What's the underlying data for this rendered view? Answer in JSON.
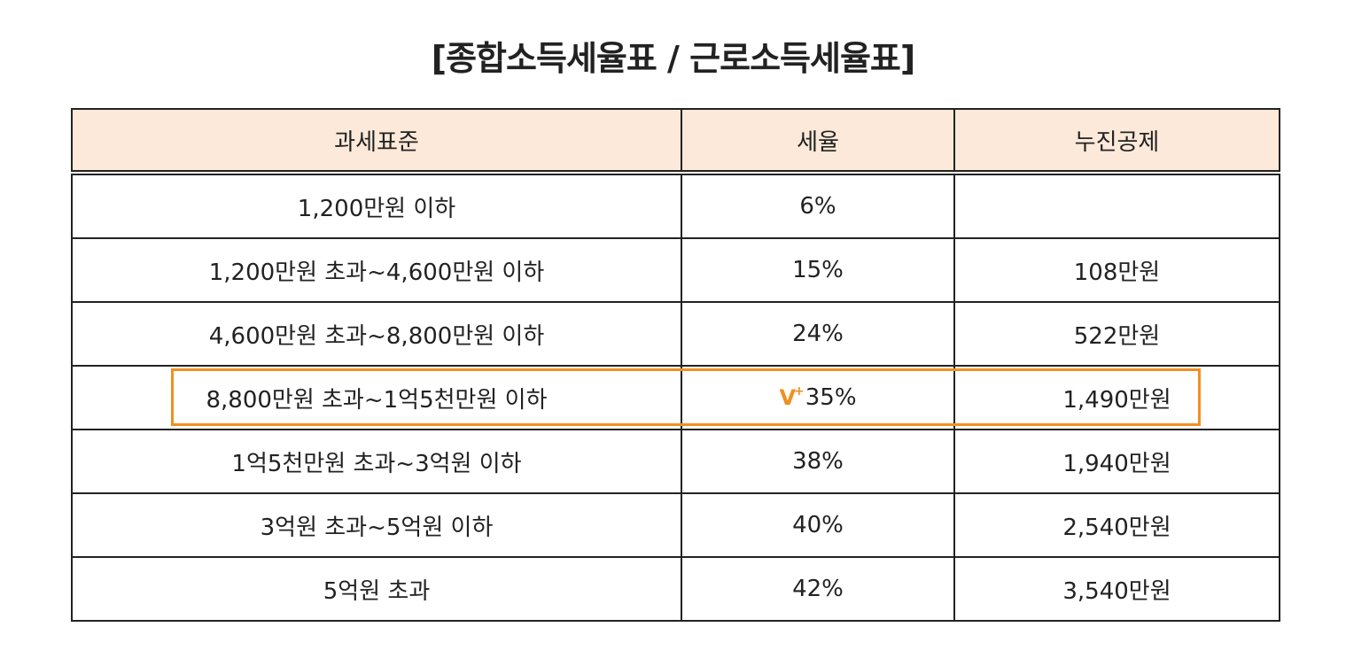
{
  "title": "[종합소득세율표 / 근로소득세율표]",
  "colors": {
    "header_bg": "#fde9d9",
    "border": "#222222",
    "highlight": "#f0901f"
  },
  "table": {
    "headers": [
      "과세표준",
      "세율",
      "누진공제"
    ],
    "rows": [
      {
        "bracket": "1,200만원 이하",
        "rate": "6%",
        "deduction": ""
      },
      {
        "bracket": "1,200만원 초과~4,600만원 이하",
        "rate": "15%",
        "deduction": "108만원"
      },
      {
        "bracket": "4,600만원 초과~8,800만원 이하",
        "rate": "24%",
        "deduction": "522만원"
      },
      {
        "bracket": "8,800만원 초과~1억5천만원 이하",
        "rate": "35%",
        "deduction": "1,490만원"
      },
      {
        "bracket": "1억5천만원 초과~3억원 이하",
        "rate": "38%",
        "deduction": "1,940만원"
      },
      {
        "bracket": "3억원 초과~5억원 이하",
        "rate": "40%",
        "deduction": "2,540만원"
      },
      {
        "bracket": "5억원 초과",
        "rate": "42%",
        "deduction": "3,540만원"
      }
    ],
    "highlighted_row": 3,
    "mark": {
      "check": "V",
      "plus": "+"
    }
  }
}
